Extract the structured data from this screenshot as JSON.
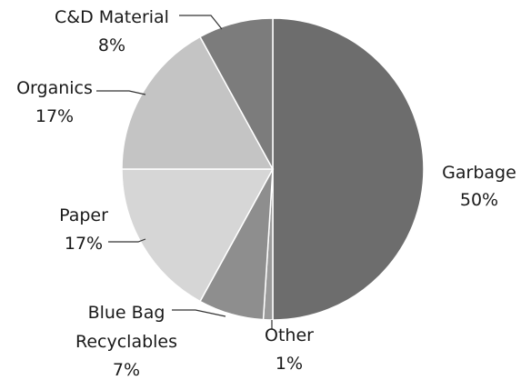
{
  "chart_data": {
    "type": "pie",
    "title": "",
    "slices": [
      {
        "label": "Garbage",
        "value": 50,
        "pct_text": "50%",
        "color": "#6d6d6d"
      },
      {
        "label": "Other",
        "value": 1,
        "pct_text": "1%",
        "color": "#9a9a9a"
      },
      {
        "label": "Blue Bag Recyclables",
        "label_lines": [
          "Blue Bag",
          "Recyclables"
        ],
        "value": 7,
        "pct_text": "7%",
        "color": "#8e8e8e"
      },
      {
        "label": "Paper",
        "value": 17,
        "pct_text": "17%",
        "color": "#d6d6d6"
      },
      {
        "label": "Organics",
        "value": 17,
        "pct_text": "17%",
        "color": "#c4c4c4"
      },
      {
        "label": "C&D Material",
        "value": 8,
        "pct_text": "8%",
        "color": "#7c7c7c"
      }
    ],
    "legend": "none",
    "data_labels": "outside-with-leader-lines"
  }
}
